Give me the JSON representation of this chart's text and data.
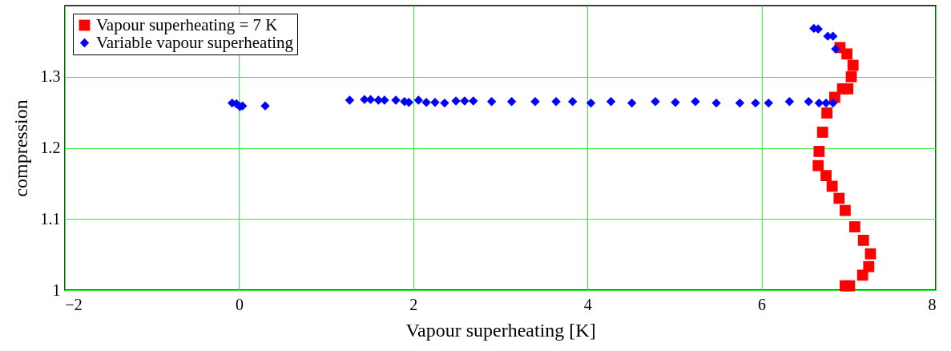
{
  "chart_data": {
    "type": "scatter",
    "xlabel": "Vapour superheating [K]",
    "ylabel": "compression",
    "xlim": [
      -2,
      8
    ],
    "ylim": [
      1,
      1.4
    ],
    "xticks": [
      -2,
      0,
      2,
      4,
      6,
      8
    ],
    "yticks": [
      1,
      1.1,
      1.2,
      1.3
    ],
    "grid": true,
    "legend": "top left",
    "series": [
      {
        "name": "Vapour superheating = 7 K",
        "color": "#ff0000",
        "marker": "square",
        "x": [
          6.9,
          6.98,
          7.05,
          7.03,
          6.93,
          6.99,
          6.84,
          6.75,
          6.7,
          6.66,
          6.65,
          6.74,
          6.81,
          6.89,
          6.96,
          7.07,
          7.17,
          7.25,
          7.23,
          7.16,
          6.96,
          7.01
        ],
        "values": [
          1.341,
          1.332,
          1.316,
          1.3,
          1.283,
          1.283,
          1.271,
          1.249,
          1.222,
          1.195,
          1.175,
          1.161,
          1.146,
          1.129,
          1.112,
          1.089,
          1.07,
          1.051,
          1.033,
          1.021,
          1.006,
          1.006
        ]
      },
      {
        "name": "Variable vapour superheating",
        "color": "#0000ff",
        "marker": "diamond",
        "x": [
          -0.08,
          -0.03,
          0.01,
          0.04,
          0.3,
          1.27,
          1.44,
          1.51,
          1.6,
          1.67,
          1.8,
          1.9,
          1.95,
          2.06,
          2.15,
          2.25,
          2.36,
          2.49,
          2.59,
          2.69,
          2.9,
          3.13,
          3.4,
          3.64,
          3.83,
          4.04,
          4.27,
          4.51,
          4.78,
          5.01,
          5.24,
          5.48,
          5.75,
          5.93,
          6.08,
          6.32,
          6.54,
          6.66,
          6.74,
          6.82,
          6.6,
          6.65,
          6.76,
          6.82,
          6.85
        ],
        "values": [
          1.263,
          1.262,
          1.258,
          1.259,
          1.259,
          1.267,
          1.268,
          1.268,
          1.267,
          1.267,
          1.267,
          1.265,
          1.264,
          1.267,
          1.264,
          1.264,
          1.263,
          1.266,
          1.266,
          1.266,
          1.265,
          1.265,
          1.265,
          1.265,
          1.265,
          1.263,
          1.265,
          1.263,
          1.265,
          1.264,
          1.265,
          1.263,
          1.263,
          1.263,
          1.263,
          1.265,
          1.265,
          1.263,
          1.263,
          1.263,
          1.368,
          1.367,
          1.357,
          1.357,
          1.339
        ]
      }
    ]
  }
}
